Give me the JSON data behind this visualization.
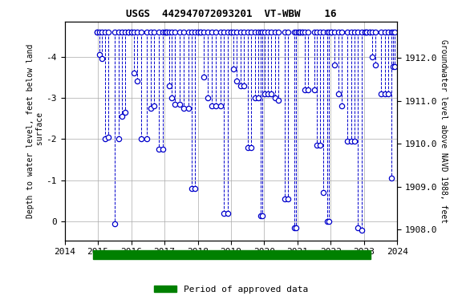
{
  "title": "USGS  442947072093201  VT-WBW    16",
  "ylabel_left": "Depth to water level, feet below land\n surface",
  "ylabel_right": "Groundwater level above NAVD 1988, feet",
  "xlim": [
    2014,
    2024
  ],
  "ylim_left": [
    0.45,
    -4.85
  ],
  "ylim_right": [
    1907.75,
    1912.85
  ],
  "yticks_left": [
    0.0,
    -1.0,
    -2.0,
    -3.0,
    -4.0
  ],
  "yticks_right": [
    1908.0,
    1909.0,
    1910.0,
    1911.0,
    1912.0
  ],
  "xticks": [
    2014,
    2015,
    2016,
    2017,
    2018,
    2019,
    2020,
    2021,
    2022,
    2023,
    2024
  ],
  "line_color": "#0000CC",
  "marker_color": "#0000CC",
  "marker_face": "white",
  "grid_color": "#AAAAAA",
  "background_color": "#FFFFFF",
  "legend_label": "Period of approved data",
  "legend_color": "#008000",
  "approved_xstart": 2014.85,
  "approved_xend": 2023.2,
  "drops": [
    {
      "x": 2014.98,
      "y": [
        -4.6,
        -4.6
      ]
    },
    {
      "x": 2015.04,
      "y": [
        -4.6,
        -4.05
      ]
    },
    {
      "x": 2015.12,
      "y": [
        -4.6,
        -3.95
      ]
    },
    {
      "x": 2015.22,
      "y": [
        -4.6,
        -2.0
      ]
    },
    {
      "x": 2015.32,
      "y": [
        -4.6,
        -2.05
      ]
    },
    {
      "x": 2015.5,
      "y": [
        -4.6,
        0.05
      ]
    },
    {
      "x": 2015.62,
      "y": [
        -4.6,
        -2.0
      ]
    },
    {
      "x": 2015.72,
      "y": [
        -4.6,
        -2.55
      ]
    },
    {
      "x": 2015.82,
      "y": [
        -4.6,
        -2.65
      ]
    },
    {
      "x": 2015.92,
      "y": [
        -4.6,
        -4.6
      ]
    },
    {
      "x": 2016.0,
      "y": [
        -4.6,
        -4.6
      ]
    },
    {
      "x": 2016.08,
      "y": [
        -4.6,
        -3.6
      ]
    },
    {
      "x": 2016.18,
      "y": [
        -4.6,
        -3.4
      ]
    },
    {
      "x": 2016.3,
      "y": [
        -4.6,
        -2.0
      ]
    },
    {
      "x": 2016.48,
      "y": [
        -4.6,
        -2.0
      ]
    },
    {
      "x": 2016.58,
      "y": [
        -4.6,
        -2.75
      ]
    },
    {
      "x": 2016.68,
      "y": [
        -4.6,
        -2.8
      ]
    },
    {
      "x": 2016.82,
      "y": [
        -4.6,
        -1.75
      ]
    },
    {
      "x": 2016.95,
      "y": [
        -4.6,
        -1.75
      ]
    },
    {
      "x": 2017.02,
      "y": [
        -4.6,
        -4.6
      ]
    },
    {
      "x": 2017.08,
      "y": [
        -4.6,
        -4.6
      ]
    },
    {
      "x": 2017.15,
      "y": [
        -4.6,
        -3.3
      ]
    },
    {
      "x": 2017.22,
      "y": [
        -4.6,
        -3.0
      ]
    },
    {
      "x": 2017.32,
      "y": [
        -4.6,
        -2.85
      ]
    },
    {
      "x": 2017.45,
      "y": [
        -4.6,
        -2.85
      ]
    },
    {
      "x": 2017.58,
      "y": [
        -4.6,
        -2.75
      ]
    },
    {
      "x": 2017.72,
      "y": [
        -4.6,
        -2.75
      ]
    },
    {
      "x": 2017.82,
      "y": [
        -4.6,
        -0.8
      ]
    },
    {
      "x": 2017.92,
      "y": [
        -4.6,
        -0.8
      ]
    },
    {
      "x": 2018.02,
      "y": [
        -4.6,
        -4.6
      ]
    },
    {
      "x": 2018.08,
      "y": [
        -4.6,
        -4.6
      ]
    },
    {
      "x": 2018.18,
      "y": [
        -4.6,
        -3.5
      ]
    },
    {
      "x": 2018.3,
      "y": [
        -4.6,
        -3.0
      ]
    },
    {
      "x": 2018.42,
      "y": [
        -4.6,
        -2.8
      ]
    },
    {
      "x": 2018.55,
      "y": [
        -4.6,
        -2.8
      ]
    },
    {
      "x": 2018.68,
      "y": [
        -4.6,
        -2.8
      ]
    },
    {
      "x": 2018.78,
      "y": [
        -4.6,
        -0.2
      ]
    },
    {
      "x": 2018.9,
      "y": [
        -4.6,
        -0.2
      ]
    },
    {
      "x": 2019.0,
      "y": [
        -4.6,
        -4.6
      ]
    },
    {
      "x": 2019.08,
      "y": [
        -4.6,
        -3.7
      ]
    },
    {
      "x": 2019.18,
      "y": [
        -4.6,
        -3.4
      ]
    },
    {
      "x": 2019.28,
      "y": [
        -4.6,
        -3.3
      ]
    },
    {
      "x": 2019.38,
      "y": [
        -4.6,
        -3.3
      ]
    },
    {
      "x": 2019.5,
      "y": [
        -4.6,
        -1.8
      ]
    },
    {
      "x": 2019.6,
      "y": [
        -4.6,
        -1.8
      ]
    },
    {
      "x": 2019.72,
      "y": [
        -4.6,
        -3.0
      ]
    },
    {
      "x": 2019.82,
      "y": [
        -4.6,
        -3.0
      ]
    },
    {
      "x": 2019.9,
      "y": [
        -4.6,
        -0.15
      ]
    },
    {
      "x": 2019.95,
      "y": [
        -4.6,
        -0.15
      ]
    },
    {
      "x": 2020.02,
      "y": [
        -4.6,
        -3.1
      ]
    },
    {
      "x": 2020.1,
      "y": [
        -4.6,
        -3.1
      ]
    },
    {
      "x": 2020.2,
      "y": [
        -4.6,
        -3.1
      ]
    },
    {
      "x": 2020.32,
      "y": [
        -4.6,
        -3.0
      ]
    },
    {
      "x": 2020.42,
      "y": [
        -4.6,
        -2.95
      ]
    },
    {
      "x": 2020.62,
      "y": [
        -4.6,
        -0.55
      ]
    },
    {
      "x": 2020.72,
      "y": [
        -4.6,
        -0.55
      ]
    },
    {
      "x": 2020.9,
      "y": [
        -4.6,
        0.15
      ]
    },
    {
      "x": 2020.95,
      "y": [
        -4.6,
        0.15
      ]
    },
    {
      "x": 2021.02,
      "y": [
        -4.6,
        -4.6
      ]
    },
    {
      "x": 2021.08,
      "y": [
        -4.6,
        -4.6
      ]
    },
    {
      "x": 2021.15,
      "y": [
        -4.6,
        -4.6
      ]
    },
    {
      "x": 2021.22,
      "y": [
        -4.6,
        -3.2
      ]
    },
    {
      "x": 2021.32,
      "y": [
        -4.6,
        -3.2
      ]
    },
    {
      "x": 2021.5,
      "y": [
        -4.6,
        -3.2
      ]
    },
    {
      "x": 2021.58,
      "y": [
        -4.6,
        -1.85
      ]
    },
    {
      "x": 2021.68,
      "y": [
        -4.6,
        -1.85
      ]
    },
    {
      "x": 2021.78,
      "y": [
        -4.6,
        -0.7
      ]
    },
    {
      "x": 2021.9,
      "y": [
        -4.6,
        0.0
      ]
    },
    {
      "x": 2021.95,
      "y": [
        -4.6,
        0.0
      ]
    },
    {
      "x": 2022.02,
      "y": [
        -4.6,
        -4.6
      ]
    },
    {
      "x": 2022.12,
      "y": [
        -4.6,
        -3.8
      ]
    },
    {
      "x": 2022.22,
      "y": [
        -4.6,
        -3.1
      ]
    },
    {
      "x": 2022.32,
      "y": [
        -4.6,
        -2.8
      ]
    },
    {
      "x": 2022.5,
      "y": [
        -4.6,
        -1.95
      ]
    },
    {
      "x": 2022.62,
      "y": [
        -4.6,
        -1.95
      ]
    },
    {
      "x": 2022.72,
      "y": [
        -4.6,
        -1.95
      ]
    },
    {
      "x": 2022.82,
      "y": [
        -4.6,
        0.15
      ]
    },
    {
      "x": 2022.92,
      "y": [
        -4.6,
        0.2
      ]
    },
    {
      "x": 2023.02,
      "y": [
        -4.6,
        -4.6
      ]
    },
    {
      "x": 2023.08,
      "y": [
        -4.6,
        -4.6
      ]
    },
    {
      "x": 2023.18,
      "y": [
        -4.6,
        -4.6
      ]
    },
    {
      "x": 2023.25,
      "y": [
        -4.6,
        -4.0
      ]
    },
    {
      "x": 2023.35,
      "y": [
        -4.6,
        -3.8
      ]
    },
    {
      "x": 2023.5,
      "y": [
        -4.6,
        -3.1
      ]
    },
    {
      "x": 2023.62,
      "y": [
        -4.6,
        -3.1
      ]
    },
    {
      "x": 2023.72,
      "y": [
        -4.6,
        -3.1
      ]
    },
    {
      "x": 2023.82,
      "y": [
        -4.6,
        -1.05
      ]
    },
    {
      "x": 2023.88,
      "y": [
        -4.6,
        -3.75
      ]
    },
    {
      "x": 2023.92,
      "y": [
        -4.6,
        -3.75
      ]
    }
  ]
}
